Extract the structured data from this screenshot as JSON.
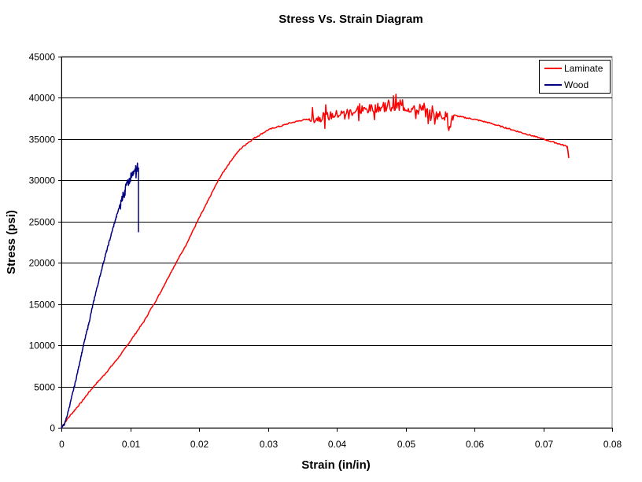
{
  "chart_data": {
    "type": "line",
    "title": "Stress Vs. Strain Diagram",
    "xlabel": "Strain (in/in)",
    "ylabel": "Stress (psi)",
    "xlim": [
      0,
      0.08
    ],
    "ylim": [
      0,
      45000
    ],
    "x_ticks": [
      "0",
      "0.01",
      "0.02",
      "0.03",
      "0.04",
      "0.05",
      "0.06",
      "0.07",
      "0.08"
    ],
    "y_ticks": [
      "0",
      "5000",
      "10000",
      "15000",
      "20000",
      "25000",
      "30000",
      "35000",
      "40000",
      "45000"
    ],
    "grid": "horizontal major gridlines",
    "legend_position": "top-right",
    "plot_background": "#ffffff",
    "series": [
      {
        "name": "Laminate",
        "color": "#ff0000",
        "x": [
          0,
          0.001,
          0.002,
          0.003,
          0.004,
          0.005,
          0.006,
          0.007,
          0.008,
          0.009,
          0.01,
          0.011,
          0.012,
          0.013,
          0.014,
          0.015,
          0.016,
          0.017,
          0.018,
          0.019,
          0.02,
          0.021,
          0.022,
          0.023,
          0.024,
          0.025,
          0.026,
          0.027,
          0.028,
          0.029,
          0.03,
          0.031,
          0.032,
          0.033,
          0.034,
          0.035,
          0.036,
          0.037,
          0.038,
          0.039,
          0.04,
          0.041,
          0.042,
          0.043,
          0.044,
          0.045,
          0.046,
          0.047,
          0.048,
          0.049,
          0.05,
          0.051,
          0.052,
          0.053,
          0.054,
          0.055,
          0.056,
          0.0565,
          0.057,
          0.058,
          0.06,
          0.062,
          0.064,
          0.066,
          0.068,
          0.07,
          0.072,
          0.0735,
          0.0736,
          0.0737
        ],
        "y": [
          0,
          1200,
          2200,
          3200,
          4300,
          5300,
          6200,
          7200,
          8200,
          9300,
          10500,
          11700,
          12900,
          14400,
          15800,
          17400,
          19000,
          20500,
          22000,
          23700,
          25400,
          27000,
          28700,
          30300,
          31600,
          32800,
          33800,
          34500,
          35100,
          35600,
          36100,
          36400,
          36600,
          36900,
          37100,
          37300,
          37400,
          37500,
          37700,
          37800,
          38000,
          38100,
          38300,
          38400,
          38500,
          38700,
          38800,
          38900,
          39000,
          39100,
          38800,
          38600,
          38400,
          38200,
          38000,
          37900,
          37800,
          36800,
          37900,
          37700,
          37400,
          37000,
          36500,
          36000,
          35500,
          35000,
          34500,
          34100,
          33500,
          32700
        ],
        "noise_start_x": 0.036,
        "noise_end_x": 0.057
      },
      {
        "name": "Wood",
        "color": "#000080",
        "x": [
          0,
          0.0005,
          0.001,
          0.0015,
          0.002,
          0.0025,
          0.003,
          0.0035,
          0.004,
          0.0045,
          0.005,
          0.0055,
          0.006,
          0.0065,
          0.007,
          0.0075,
          0.008,
          0.0085,
          0.009,
          0.0095,
          0.01,
          0.0105,
          0.011,
          0.0112,
          0.0112
        ],
        "y": [
          0,
          500,
          2000,
          3700,
          5400,
          7300,
          9200,
          11000,
          12700,
          14600,
          16400,
          18000,
          19700,
          21200,
          22700,
          24200,
          25600,
          27000,
          28300,
          29400,
          30100,
          30800,
          31400,
          31500,
          23700
        ],
        "noise_start_x": 0.0085,
        "noise_end_x": 0.0112
      }
    ]
  }
}
